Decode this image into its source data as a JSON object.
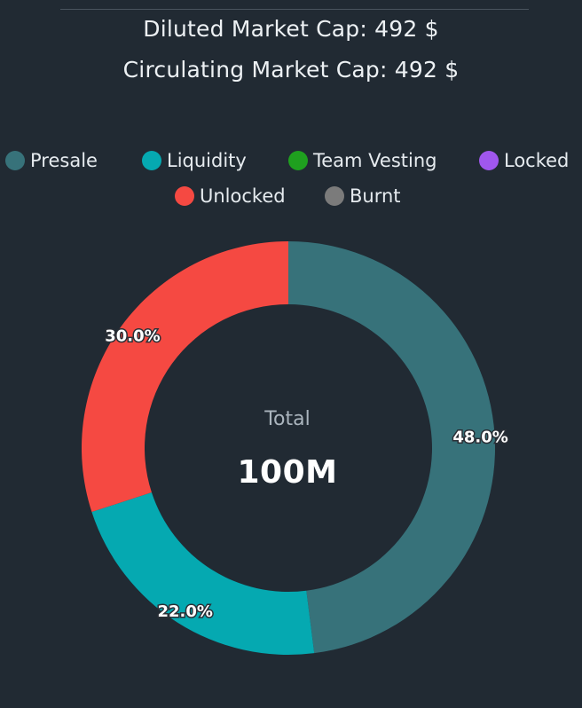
{
  "header": {
    "diluted_cap": "Diluted Market Cap: 492 $",
    "circulating_cap": "Circulating Market Cap: 492 $"
  },
  "legend": [
    {
      "label": "Presale",
      "color": "#37727a"
    },
    {
      "label": "Liquidity",
      "color": "#05a9b1"
    },
    {
      "label": "Team Vesting",
      "color": "#1fa01f"
    },
    {
      "label": "Locked",
      "color": "#a057ee"
    },
    {
      "label": "Unlocked",
      "color": "#f54942"
    },
    {
      "label": "Burnt",
      "color": "#7b7b7b"
    }
  ],
  "center": {
    "title": "Total",
    "value": "100M"
  },
  "chart_data": {
    "type": "pie",
    "donut": true,
    "categories": [
      "Presale",
      "Liquidity",
      "Team Vesting",
      "Locked",
      "Unlocked",
      "Burnt"
    ],
    "values": [
      48.0,
      22.0,
      0,
      0,
      30.0,
      0
    ],
    "colors": [
      "#37727a",
      "#05a9b1",
      "#1fa01f",
      "#a057ee",
      "#f54942",
      "#7b7b7b"
    ],
    "data_labels": [
      "48.0%",
      "22.0%",
      "",
      "",
      "30.0%",
      ""
    ],
    "legend_position": "top"
  }
}
